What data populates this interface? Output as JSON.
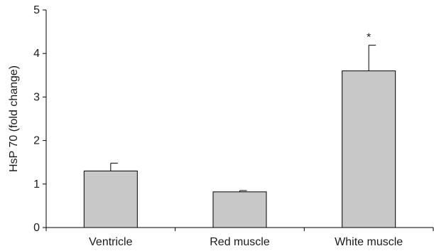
{
  "chart_data": {
    "type": "bar",
    "categories": [
      "Ventricle",
      "Red muscle",
      "White muscle"
    ],
    "values": [
      1.3,
      0.82,
      3.6
    ],
    "errors": [
      0.18,
      0.03,
      0.59
    ],
    "annotations": [
      "",
      "",
      "*"
    ],
    "ylabel": "HsP 70 (fold change)",
    "xlabel": "",
    "ylim": [
      0,
      5
    ],
    "yticks": [
      0,
      1,
      2,
      3,
      4,
      5
    ],
    "grid": false,
    "bar_color": "#c8c8c8",
    "edge_color": "#000000"
  }
}
